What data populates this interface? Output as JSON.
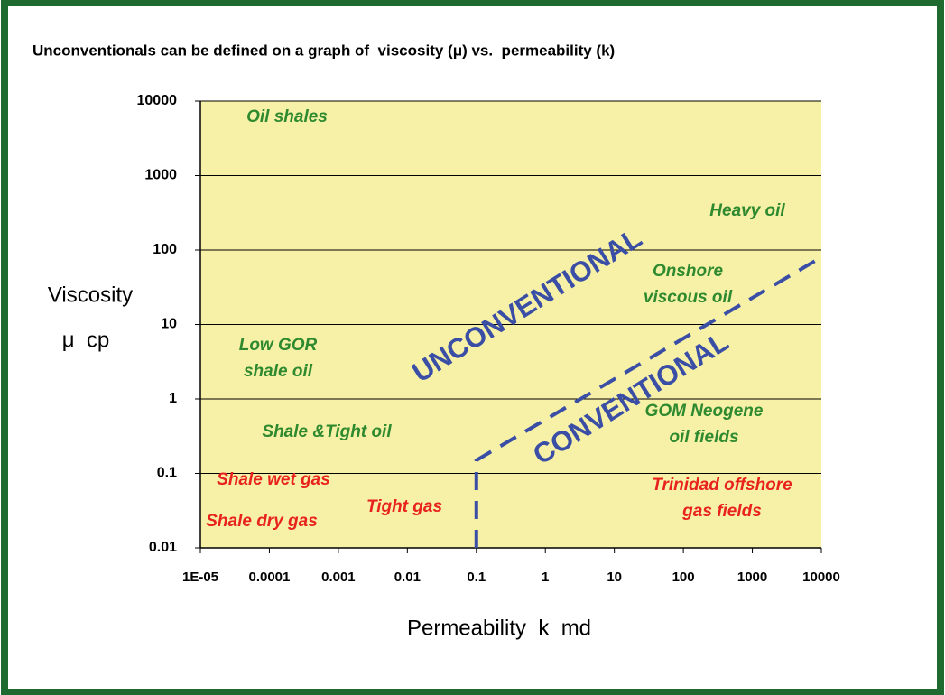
{
  "chart_data": {
    "type": "region",
    "title": "Unconventionals can be defined on a graph of  viscosity (μ) vs.  permeability (k)",
    "y_label": [
      "Viscosity",
      "μ  cp"
    ],
    "x_label": "Permeability  k  md",
    "log_x": true,
    "log_y": true,
    "grid": true,
    "xlim": [
      1e-05,
      10000
    ],
    "ylim": [
      0.01,
      10000
    ],
    "xticks": [
      {
        "value": 1e-05,
        "label": "1E-05"
      },
      0.0001,
      0.001,
      0.01,
      0.1,
      1,
      10,
      100,
      1000,
      10000
    ],
    "yticks": [
      0.01,
      0.1,
      1,
      10,
      100,
      1000,
      10000
    ],
    "plot_color": "#f6f1a6",
    "boundary": {
      "x": [
        0.1,
        0.1,
        10000
      ],
      "y": [
        0.01,
        0.15,
        80
      ],
      "color": "#3b4ea6"
    },
    "annotations": [
      {
        "lines": [
          "Oil shales"
        ],
        "color": "#2f8a2f"
      },
      {
        "lines": [
          "Heavy oil"
        ],
        "color": "#2f8a2f"
      },
      {
        "lines": [
          "Onshore",
          "viscous oil"
        ],
        "color": "#2f8a2f"
      },
      {
        "lines": [
          "Low GOR",
          "shale oil"
        ],
        "color": "#2f8a2f"
      },
      {
        "lines": [
          "Shale &Tight oil"
        ],
        "color": "#2f8a2f"
      },
      {
        "lines": [
          "GOM Neogene",
          "oil fields"
        ],
        "color": "#2f8a2f"
      },
      {
        "lines": [
          "Shale wet gas"
        ],
        "color": "#e8231f"
      },
      {
        "lines": [
          "Shale dry gas"
        ],
        "color": "#e8231f"
      },
      {
        "lines": [
          "Tight gas"
        ],
        "color": "#e8231f"
      },
      {
        "lines": [
          "Trinidad offshore",
          "gas fields"
        ],
        "color": "#e8231f"
      },
      {
        "lines": [
          "UNCONVENTIONAL"
        ],
        "color": "#3b4ea6"
      },
      {
        "lines": [
          "CONVENTIONAL"
        ],
        "color": "#3b4ea6"
      }
    ]
  }
}
